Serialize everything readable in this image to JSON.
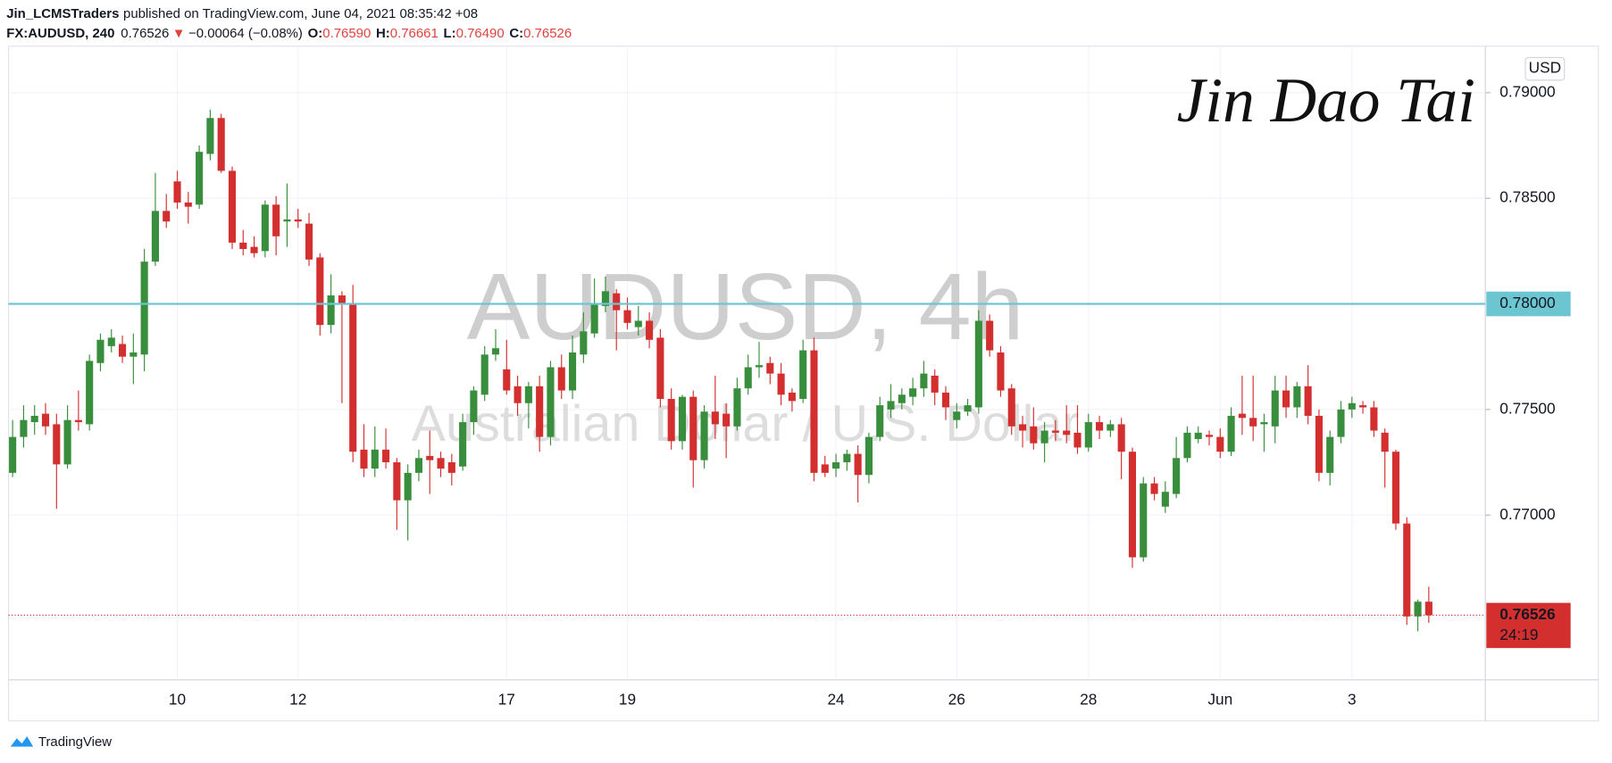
{
  "header": {
    "publisher": "Jin_LCMSTraders",
    "published_text": "published on TradingView.com, June 04, 2021 08:35:42 +08",
    "symbol": "FX:AUDUSD, 240",
    "last": "0.76526",
    "direction": "▼",
    "change": "−0.00064 (−0.08%)",
    "o_label": "O:",
    "o": "0.76590",
    "h_label": "H:",
    "h": "0.76661",
    "l_label": "L:",
    "l": "0.76490",
    "c_label": "C:",
    "c": "0.76526"
  },
  "signature": "Jin Dao Tai",
  "footer": "TradingView",
  "chart_data": {
    "type": "candlestick",
    "title": "AUDUSD, 4h",
    "subtitle": "Australian Dollar / U.S. Dollar",
    "currency": "USD",
    "up_color": "#388e3c",
    "down_color": "#d32f2f",
    "grid": true,
    "ylim": [
      0.7622,
      0.7922
    ],
    "yticks": [
      {
        "value": 0.77,
        "label": "0.77000"
      },
      {
        "value": 0.775,
        "label": "0.77500"
      },
      {
        "value": 0.785,
        "label": "0.78500"
      },
      {
        "value": 0.79,
        "label": "0.79000"
      }
    ],
    "hline": {
      "value": 0.78,
      "label": "0.78000",
      "color": "#6cc6d2"
    },
    "last_price": {
      "value": 0.76526,
      "label": "0.76526",
      "countdown": "24:19",
      "color": "#d32f2f"
    },
    "categories": [
      null,
      null,
      null,
      null,
      null,
      null,
      null,
      null,
      null,
      null,
      null,
      null,
      null,
      null,
      null,
      "10",
      null,
      null,
      null,
      null,
      null,
      null,
      null,
      null,
      null,
      null,
      "12",
      null,
      null,
      null,
      null,
      null,
      null,
      null,
      null,
      null,
      null,
      null,
      null,
      null,
      null,
      null,
      null,
      null,
      null,
      "17",
      null,
      null,
      null,
      null,
      null,
      null,
      null,
      null,
      null,
      null,
      "19",
      null,
      null,
      null,
      null,
      null,
      null,
      null,
      null,
      null,
      null,
      null,
      null,
      null,
      null,
      null,
      null,
      null,
      null,
      "24",
      null,
      null,
      null,
      null,
      null,
      null,
      null,
      null,
      null,
      null,
      "26",
      null,
      null,
      null,
      null,
      null,
      null,
      null,
      null,
      null,
      null,
      null,
      "28",
      null,
      null,
      null,
      null,
      null,
      null,
      null,
      null,
      null,
      null,
      null,
      "Jun",
      null,
      null,
      null,
      null,
      null,
      null,
      null,
      null,
      null,
      null,
      null,
      "3",
      null,
      null,
      null,
      null,
      null,
      null,
      null
    ],
    "candles": [
      {
        "o": 0.772,
        "h": 0.7745,
        "l": 0.7718,
        "c": 0.7737
      },
      {
        "o": 0.7737,
        "h": 0.7752,
        "l": 0.7732,
        "c": 0.7745
      },
      {
        "o": 0.7744,
        "h": 0.7752,
        "l": 0.7738,
        "c": 0.7747
      },
      {
        "o": 0.7748,
        "h": 0.7753,
        "l": 0.7738,
        "c": 0.7742
      },
      {
        "o": 0.7743,
        "h": 0.7748,
        "l": 0.7703,
        "c": 0.7724
      },
      {
        "o": 0.7724,
        "h": 0.7752,
        "l": 0.7722,
        "c": 0.7745
      },
      {
        "o": 0.7745,
        "h": 0.7759,
        "l": 0.774,
        "c": 0.7744
      },
      {
        "o": 0.7743,
        "h": 0.7776,
        "l": 0.774,
        "c": 0.7773
      },
      {
        "o": 0.7772,
        "h": 0.7786,
        "l": 0.7768,
        "c": 0.7783
      },
      {
        "o": 0.778,
        "h": 0.7788,
        "l": 0.7777,
        "c": 0.7784
      },
      {
        "o": 0.7781,
        "h": 0.7785,
        "l": 0.7772,
        "c": 0.7775
      },
      {
        "o": 0.7775,
        "h": 0.7786,
        "l": 0.7762,
        "c": 0.7777
      },
      {
        "o": 0.7776,
        "h": 0.7826,
        "l": 0.7768,
        "c": 0.782
      },
      {
        "o": 0.782,
        "h": 0.7862,
        "l": 0.7818,
        "c": 0.7844
      },
      {
        "o": 0.7844,
        "h": 0.7852,
        "l": 0.7836,
        "c": 0.7839
      },
      {
        "o": 0.7858,
        "h": 0.7863,
        "l": 0.7845,
        "c": 0.7848
      },
      {
        "o": 0.7848,
        "h": 0.7853,
        "l": 0.7838,
        "c": 0.7846
      },
      {
        "o": 0.7847,
        "h": 0.7875,
        "l": 0.7845,
        "c": 0.7872
      },
      {
        "o": 0.7871,
        "h": 0.7892,
        "l": 0.7868,
        "c": 0.7888
      },
      {
        "o": 0.7888,
        "h": 0.789,
        "l": 0.7862,
        "c": 0.7863
      },
      {
        "o": 0.7863,
        "h": 0.7865,
        "l": 0.7826,
        "c": 0.7829
      },
      {
        "o": 0.7829,
        "h": 0.7835,
        "l": 0.7823,
        "c": 0.7826
      },
      {
        "o": 0.7827,
        "h": 0.7832,
        "l": 0.7822,
        "c": 0.7824
      },
      {
        "o": 0.7825,
        "h": 0.7849,
        "l": 0.7822,
        "c": 0.7847
      },
      {
        "o": 0.7847,
        "h": 0.7851,
        "l": 0.7823,
        "c": 0.7832
      },
      {
        "o": 0.7839,
        "h": 0.7857,
        "l": 0.7827,
        "c": 0.784
      },
      {
        "o": 0.784,
        "h": 0.7845,
        "l": 0.7836,
        "c": 0.7839
      },
      {
        "o": 0.7838,
        "h": 0.7843,
        "l": 0.7818,
        "c": 0.7821
      },
      {
        "o": 0.7822,
        "h": 0.7824,
        "l": 0.7785,
        "c": 0.779
      },
      {
        "o": 0.779,
        "h": 0.7814,
        "l": 0.7786,
        "c": 0.7804
      },
      {
        "o": 0.7804,
        "h": 0.7806,
        "l": 0.7753,
        "c": 0.78
      },
      {
        "o": 0.78,
        "h": 0.7809,
        "l": 0.7725,
        "c": 0.773
      },
      {
        "o": 0.7731,
        "h": 0.7743,
        "l": 0.7718,
        "c": 0.7722
      },
      {
        "o": 0.7722,
        "h": 0.7742,
        "l": 0.7718,
        "c": 0.7731
      },
      {
        "o": 0.7731,
        "h": 0.7741,
        "l": 0.7722,
        "c": 0.7725
      },
      {
        "o": 0.7725,
        "h": 0.7727,
        "l": 0.7693,
        "c": 0.7707
      },
      {
        "o": 0.7707,
        "h": 0.7724,
        "l": 0.7688,
        "c": 0.772
      },
      {
        "o": 0.772,
        "h": 0.7731,
        "l": 0.7716,
        "c": 0.7727
      },
      {
        "o": 0.7728,
        "h": 0.774,
        "l": 0.771,
        "c": 0.7726
      },
      {
        "o": 0.7727,
        "h": 0.773,
        "l": 0.7718,
        "c": 0.7722
      },
      {
        "o": 0.7725,
        "h": 0.7729,
        "l": 0.7714,
        "c": 0.772
      },
      {
        "o": 0.7723,
        "h": 0.7748,
        "l": 0.7721,
        "c": 0.7744
      },
      {
        "o": 0.7744,
        "h": 0.7761,
        "l": 0.7738,
        "c": 0.7759
      },
      {
        "o": 0.7757,
        "h": 0.778,
        "l": 0.7754,
        "c": 0.7776
      },
      {
        "o": 0.7776,
        "h": 0.7788,
        "l": 0.7773,
        "c": 0.7779
      },
      {
        "o": 0.7769,
        "h": 0.7783,
        "l": 0.7757,
        "c": 0.7759
      },
      {
        "o": 0.7761,
        "h": 0.7766,
        "l": 0.7747,
        "c": 0.7753
      },
      {
        "o": 0.7753,
        "h": 0.7763,
        "l": 0.7741,
        "c": 0.7761
      },
      {
        "o": 0.7761,
        "h": 0.7766,
        "l": 0.773,
        "c": 0.7737
      },
      {
        "o": 0.7737,
        "h": 0.7773,
        "l": 0.7733,
        "c": 0.777
      },
      {
        "o": 0.777,
        "h": 0.7776,
        "l": 0.7755,
        "c": 0.7759
      },
      {
        "o": 0.7759,
        "h": 0.7785,
        "l": 0.7755,
        "c": 0.7777
      },
      {
        "o": 0.7776,
        "h": 0.7796,
        "l": 0.7772,
        "c": 0.7787
      },
      {
        "o": 0.7786,
        "h": 0.7812,
        "l": 0.7784,
        "c": 0.78
      },
      {
        "o": 0.7799,
        "h": 0.7813,
        "l": 0.7796,
        "c": 0.7806
      },
      {
        "o": 0.7805,
        "h": 0.7807,
        "l": 0.7778,
        "c": 0.7797
      },
      {
        "o": 0.7797,
        "h": 0.7803,
        "l": 0.7788,
        "c": 0.7791
      },
      {
        "o": 0.7789,
        "h": 0.7799,
        "l": 0.7785,
        "c": 0.7792
      },
      {
        "o": 0.7792,
        "h": 0.7796,
        "l": 0.7779,
        "c": 0.7783
      },
      {
        "o": 0.7784,
        "h": 0.7788,
        "l": 0.7751,
        "c": 0.7755
      },
      {
        "o": 0.7755,
        "h": 0.776,
        "l": 0.7731,
        "c": 0.7735
      },
      {
        "o": 0.7735,
        "h": 0.7757,
        "l": 0.7731,
        "c": 0.7756
      },
      {
        "o": 0.7756,
        "h": 0.7759,
        "l": 0.7713,
        "c": 0.7726
      },
      {
        "o": 0.7726,
        "h": 0.7752,
        "l": 0.7722,
        "c": 0.7749
      },
      {
        "o": 0.7749,
        "h": 0.7766,
        "l": 0.7736,
        "c": 0.7743
      },
      {
        "o": 0.7748,
        "h": 0.7753,
        "l": 0.7727,
        "c": 0.7742
      },
      {
        "o": 0.7742,
        "h": 0.7765,
        "l": 0.774,
        "c": 0.776
      },
      {
        "o": 0.776,
        "h": 0.7776,
        "l": 0.7757,
        "c": 0.777
      },
      {
        "o": 0.777,
        "h": 0.7782,
        "l": 0.7765,
        "c": 0.7771
      },
      {
        "o": 0.7772,
        "h": 0.7775,
        "l": 0.7762,
        "c": 0.7767
      },
      {
        "o": 0.7767,
        "h": 0.7772,
        "l": 0.7752,
        "c": 0.7757
      },
      {
        "o": 0.7758,
        "h": 0.776,
        "l": 0.7749,
        "c": 0.7754
      },
      {
        "o": 0.7755,
        "h": 0.7783,
        "l": 0.7753,
        "c": 0.7778
      },
      {
        "o": 0.7778,
        "h": 0.7784,
        "l": 0.7716,
        "c": 0.772
      },
      {
        "o": 0.7724,
        "h": 0.7728,
        "l": 0.7718,
        "c": 0.772
      },
      {
        "o": 0.7722,
        "h": 0.7729,
        "l": 0.7718,
        "c": 0.7725
      },
      {
        "o": 0.7725,
        "h": 0.7731,
        "l": 0.7721,
        "c": 0.7729
      },
      {
        "o": 0.7729,
        "h": 0.7733,
        "l": 0.7706,
        "c": 0.7719
      },
      {
        "o": 0.7719,
        "h": 0.7739,
        "l": 0.7715,
        "c": 0.7737
      },
      {
        "o": 0.7737,
        "h": 0.7756,
        "l": 0.7735,
        "c": 0.7752
      },
      {
        "o": 0.775,
        "h": 0.7762,
        "l": 0.7746,
        "c": 0.7754
      },
      {
        "o": 0.7753,
        "h": 0.776,
        "l": 0.775,
        "c": 0.7757
      },
      {
        "o": 0.7756,
        "h": 0.7765,
        "l": 0.7752,
        "c": 0.776
      },
      {
        "o": 0.776,
        "h": 0.7773,
        "l": 0.7756,
        "c": 0.7767
      },
      {
        "o": 0.7766,
        "h": 0.7769,
        "l": 0.7752,
        "c": 0.7758
      },
      {
        "o": 0.7758,
        "h": 0.7761,
        "l": 0.7745,
        "c": 0.7751
      },
      {
        "o": 0.7745,
        "h": 0.7753,
        "l": 0.7741,
        "c": 0.7749
      },
      {
        "o": 0.7749,
        "h": 0.7755,
        "l": 0.7747,
        "c": 0.7752
      },
      {
        "o": 0.7751,
        "h": 0.7797,
        "l": 0.7748,
        "c": 0.7792
      },
      {
        "o": 0.7792,
        "h": 0.7795,
        "l": 0.7775,
        "c": 0.7778
      },
      {
        "o": 0.7777,
        "h": 0.778,
        "l": 0.7756,
        "c": 0.7759
      },
      {
        "o": 0.776,
        "h": 0.7762,
        "l": 0.7738,
        "c": 0.7742
      },
      {
        "o": 0.7743,
        "h": 0.7747,
        "l": 0.7732,
        "c": 0.774
      },
      {
        "o": 0.7742,
        "h": 0.7751,
        "l": 0.7731,
        "c": 0.7734
      },
      {
        "o": 0.7734,
        "h": 0.7744,
        "l": 0.7725,
        "c": 0.774
      },
      {
        "o": 0.774,
        "h": 0.7745,
        "l": 0.7735,
        "c": 0.7739
      },
      {
        "o": 0.774,
        "h": 0.7752,
        "l": 0.7734,
        "c": 0.7738
      },
      {
        "o": 0.7739,
        "h": 0.7752,
        "l": 0.7729,
        "c": 0.7732
      },
      {
        "o": 0.7732,
        "h": 0.7748,
        "l": 0.773,
        "c": 0.7744
      },
      {
        "o": 0.7744,
        "h": 0.7747,
        "l": 0.7736,
        "c": 0.774
      },
      {
        "o": 0.774,
        "h": 0.7745,
        "l": 0.7737,
        "c": 0.7743
      },
      {
        "o": 0.7743,
        "h": 0.7746,
        "l": 0.7717,
        "c": 0.773
      },
      {
        "o": 0.773,
        "h": 0.7732,
        "l": 0.7675,
        "c": 0.768
      },
      {
        "o": 0.768,
        "h": 0.7718,
        "l": 0.7678,
        "c": 0.7715
      },
      {
        "o": 0.7715,
        "h": 0.7718,
        "l": 0.7707,
        "c": 0.771
      },
      {
        "o": 0.7704,
        "h": 0.7716,
        "l": 0.7701,
        "c": 0.7711
      },
      {
        "o": 0.771,
        "h": 0.7737,
        "l": 0.7708,
        "c": 0.7727
      },
      {
        "o": 0.7727,
        "h": 0.7742,
        "l": 0.7725,
        "c": 0.7739
      },
      {
        "o": 0.7736,
        "h": 0.7742,
        "l": 0.7734,
        "c": 0.7739
      },
      {
        "o": 0.7738,
        "h": 0.774,
        "l": 0.7733,
        "c": 0.7737
      },
      {
        "o": 0.7737,
        "h": 0.7741,
        "l": 0.7727,
        "c": 0.773
      },
      {
        "o": 0.773,
        "h": 0.7751,
        "l": 0.7728,
        "c": 0.7747
      },
      {
        "o": 0.7748,
        "h": 0.7766,
        "l": 0.7738,
        "c": 0.7746
      },
      {
        "o": 0.7746,
        "h": 0.7766,
        "l": 0.7735,
        "c": 0.7742
      },
      {
        "o": 0.7743,
        "h": 0.7748,
        "l": 0.773,
        "c": 0.7744
      },
      {
        "o": 0.7742,
        "h": 0.7766,
        "l": 0.7734,
        "c": 0.7759
      },
      {
        "o": 0.7759,
        "h": 0.7766,
        "l": 0.7746,
        "c": 0.7751
      },
      {
        "o": 0.7751,
        "h": 0.7763,
        "l": 0.7746,
        "c": 0.7761
      },
      {
        "o": 0.7761,
        "h": 0.7771,
        "l": 0.7743,
        "c": 0.7747
      },
      {
        "o": 0.7747,
        "h": 0.775,
        "l": 0.7716,
        "c": 0.772
      },
      {
        "o": 0.772,
        "h": 0.774,
        "l": 0.7714,
        "c": 0.7737
      },
      {
        "o": 0.7737,
        "h": 0.7754,
        "l": 0.7734,
        "c": 0.775
      },
      {
        "o": 0.775,
        "h": 0.7756,
        "l": 0.7746,
        "c": 0.7753
      },
      {
        "o": 0.7752,
        "h": 0.7754,
        "l": 0.7748,
        "c": 0.7751
      },
      {
        "o": 0.7751,
        "h": 0.7754,
        "l": 0.7737,
        "c": 0.774
      },
      {
        "o": 0.7739,
        "h": 0.7741,
        "l": 0.7713,
        "c": 0.773
      },
      {
        "o": 0.773,
        "h": 0.7731,
        "l": 0.7693,
        "c": 0.7696
      },
      {
        "o": 0.7696,
        "h": 0.7699,
        "l": 0.7648,
        "c": 0.7652
      },
      {
        "o": 0.7652,
        "h": 0.766,
        "l": 0.7645,
        "c": 0.7659
      },
      {
        "o": 0.7659,
        "h": 0.76661,
        "l": 0.7649,
        "c": 0.76526
      }
    ]
  }
}
